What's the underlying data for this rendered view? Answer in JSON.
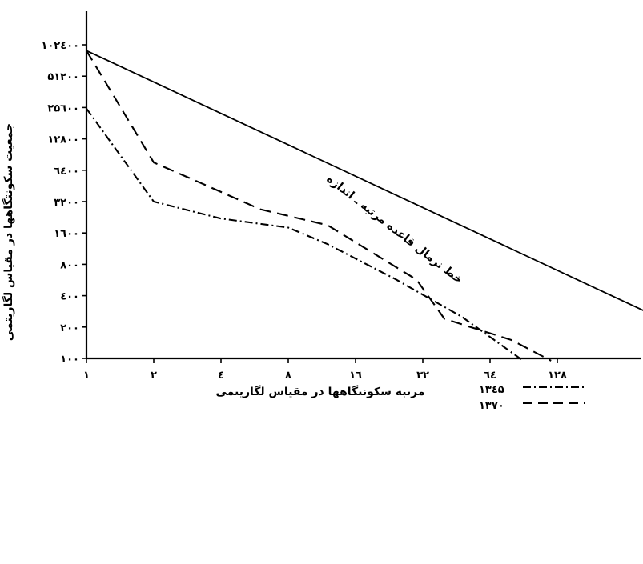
{
  "chart_data": {
    "type": "line",
    "x_scale": "log2",
    "y_scale": "log2",
    "x_ticks": [
      1,
      2,
      4,
      8,
      16,
      32,
      64,
      128
    ],
    "x_tick_labels": [
      "۱",
      "۲",
      "٤",
      "۸",
      "۱٦",
      "۳۲",
      "٦٤",
      "۱۲۸"
    ],
    "y_ticks": [
      100,
      200,
      400,
      800,
      1600,
      3200,
      6400,
      12800,
      25600,
      51200,
      102400
    ],
    "y_tick_labels": [
      "۱۰۰",
      "۲۰۰",
      "٤۰۰",
      "۸۰۰",
      "۱٦۰۰",
      "۳۲۰۰",
      "٦٤۰۰",
      "۱۲۸۰۰",
      "۲۵٦۰۰",
      "۵۱۲۰۰",
      "۱۰۲٤۰۰"
    ],
    "xlabel": "مرتبه سکونتگاهها در مقیاس لگاریتمی",
    "ylabel": "جمعیت سکونتگاهها در مقیاس لگاریتمی",
    "annotation": "خط نرمال قاعده مرتبه ـ اندازه",
    "legend_position": "bottom-right",
    "grid": false,
    "series": [
      {
        "name": "۱۳۷۰",
        "style": "dashed",
        "x": [
          1,
          2,
          3,
          6,
          12,
          30,
          40,
          80,
          120
        ],
        "y": [
          90000,
          7600,
          5200,
          2700,
          1900,
          570,
          240,
          150,
          95
        ]
      },
      {
        "name": "۱۳٤۵",
        "style": "dash-dot",
        "x": [
          1,
          2,
          4,
          8,
          12,
          24,
          48,
          70,
          90
        ],
        "y": [
          25000,
          3200,
          2200,
          1800,
          1250,
          580,
          250,
          140,
          95
        ]
      },
      {
        "name": "",
        "style": "solid",
        "x": [
          1,
          512
        ],
        "y": [
          90000,
          175
        ]
      }
    ]
  }
}
